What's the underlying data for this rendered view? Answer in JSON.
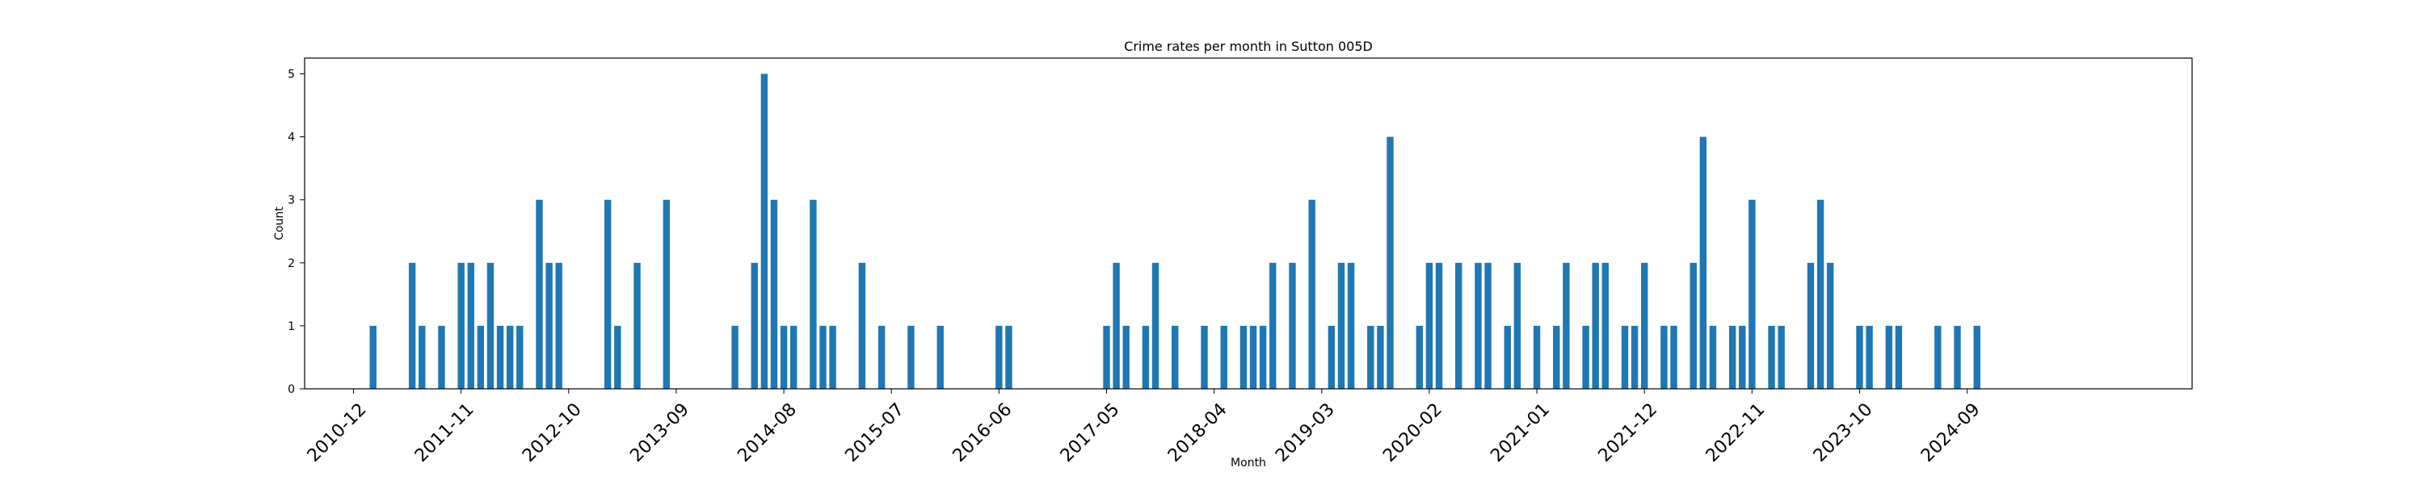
{
  "chart_data": {
    "type": "bar",
    "title": "Crime rates per month in Sutton 005D",
    "xlabel": "Month",
    "ylabel": "Count",
    "ylim": [
      0,
      5.25
    ],
    "xlim": [
      "2010-07",
      "2026-08"
    ],
    "y_ticks": [
      0,
      1,
      2,
      3,
      4,
      5
    ],
    "x_ticks": [
      "2010-12",
      "2011-11",
      "2012-10",
      "2013-09",
      "2014-08",
      "2015-07",
      "2016-06",
      "2017-05",
      "2018-04",
      "2019-03",
      "2020-02",
      "2021-01",
      "2021-12",
      "2022-11",
      "2023-10",
      "2024-09"
    ],
    "bar_color": "#1f77b4",
    "grid": false,
    "legend": "none",
    "series": [
      {
        "x": [
          "2011-02",
          "2011-06",
          "2011-07",
          "2011-09",
          "2011-11",
          "2011-12",
          "2012-01",
          "2012-02",
          "2012-03",
          "2012-04",
          "2012-05",
          "2012-07",
          "2012-08",
          "2012-09",
          "2013-02",
          "2013-03",
          "2013-05",
          "2013-08",
          "2014-03",
          "2014-05",
          "2014-06",
          "2014-07",
          "2014-08",
          "2014-09",
          "2014-11",
          "2014-12",
          "2015-01",
          "2015-04",
          "2015-06",
          "2015-09",
          "2015-12",
          "2016-06",
          "2016-07",
          "2017-05",
          "2017-06",
          "2017-07",
          "2017-09",
          "2017-10",
          "2017-12",
          "2018-03",
          "2018-05",
          "2018-07",
          "2018-08",
          "2018-09",
          "2018-10",
          "2018-12",
          "2019-02",
          "2019-04",
          "2019-05",
          "2019-06",
          "2019-08",
          "2019-09",
          "2019-10",
          "2020-01",
          "2020-02",
          "2020-03",
          "2020-05",
          "2020-07",
          "2020-08",
          "2020-10",
          "2020-11",
          "2021-01",
          "2021-03",
          "2021-04",
          "2021-06",
          "2021-07",
          "2021-08",
          "2021-10",
          "2021-11",
          "2021-12",
          "2022-02",
          "2022-03",
          "2022-05",
          "2022-06",
          "2022-07",
          "2022-09",
          "2022-10",
          "2022-11",
          "2023-01",
          "2023-02",
          "2023-05",
          "2023-06",
          "2023-07",
          "2023-10",
          "2023-11",
          "2024-01",
          "2024-02",
          "2024-06",
          "2024-08",
          "2024-10"
        ],
        "values": [
          1,
          2,
          1,
          1,
          2,
          2,
          1,
          2,
          1,
          1,
          1,
          3,
          2,
          2,
          3,
          1,
          2,
          3,
          1,
          2,
          5,
          3,
          1,
          1,
          3,
          1,
          1,
          2,
          1,
          1,
          1,
          1,
          1,
          1,
          2,
          1,
          1,
          2,
          1,
          1,
          1,
          1,
          1,
          1,
          2,
          2,
          3,
          1,
          2,
          2,
          1,
          1,
          4,
          1,
          2,
          2,
          2,
          2,
          2,
          1,
          2,
          1,
          1,
          2,
          1,
          2,
          2,
          1,
          1,
          2,
          1,
          1,
          2,
          4,
          1,
          1,
          1,
          3,
          1,
          1,
          2,
          3,
          2,
          1,
          1,
          1,
          1,
          1,
          1,
          1
        ]
      }
    ]
  }
}
